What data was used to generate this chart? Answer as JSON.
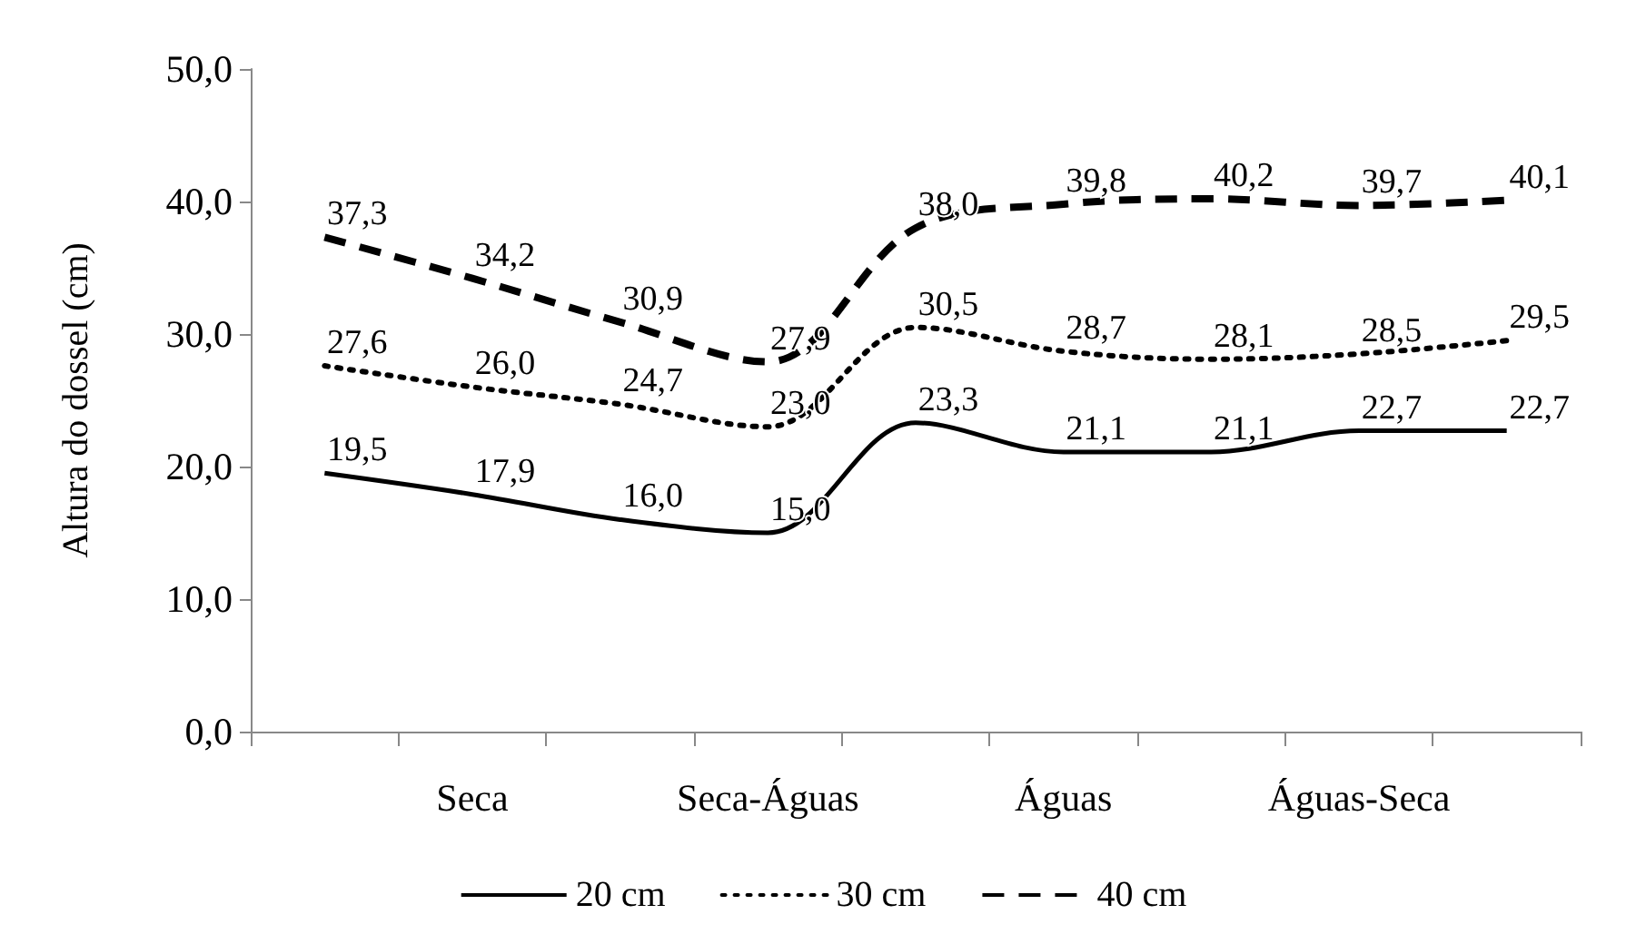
{
  "chart_data": {
    "type": "line",
    "ylabel": "Altura do dossel (cm)",
    "categories": [
      null,
      "Seca",
      null,
      "Seca-Águas",
      null,
      "Águas",
      null,
      "Águas-Seca",
      null
    ],
    "series": [
      {
        "name": "20 cm",
        "color": "#000000",
        "line_style": "solid",
        "values": [
          19.5,
          17.9,
          16.0,
          15.0,
          23.3,
          21.1,
          21.1,
          22.7,
          22.7
        ],
        "value_labels": [
          "19,5",
          "17,9",
          "16,0",
          "15,0",
          "23,3",
          "21,1",
          "21,1",
          "22,7",
          "22,7"
        ]
      },
      {
        "name": "30 cm",
        "color": "#000000",
        "line_style": "dotted",
        "values": [
          27.6,
          26.0,
          24.7,
          23.0,
          30.5,
          28.7,
          28.1,
          28.5,
          29.5
        ],
        "value_labels": [
          "27,6",
          "26,0",
          "24,7",
          "23,0",
          "30,5",
          "28,7",
          "28,1",
          "28,5",
          "29,5"
        ]
      },
      {
        "name": "40 cm",
        "color": "#000000",
        "line_style": "dashed",
        "values": [
          37.3,
          34.2,
          30.9,
          27.9,
          38.0,
          39.8,
          40.2,
          39.7,
          40.1
        ],
        "value_labels": [
          "37,3",
          "34,2",
          "30,9",
          "27,9",
          "38,0",
          "39,8",
          "40,2",
          "39,7",
          "40,1"
        ]
      }
    ],
    "ylim": [
      0,
      50
    ],
    "yticks": [
      {
        "value": 0,
        "label": "0,0"
      },
      {
        "value": 10,
        "label": "10,0"
      },
      {
        "value": 20,
        "label": "20,0"
      },
      {
        "value": 30,
        "label": "30,0"
      },
      {
        "value": 40,
        "label": "40,0"
      },
      {
        "value": 50,
        "label": "50,0"
      }
    ],
    "grid": false,
    "legend": "bottom",
    "marker": "none"
  }
}
